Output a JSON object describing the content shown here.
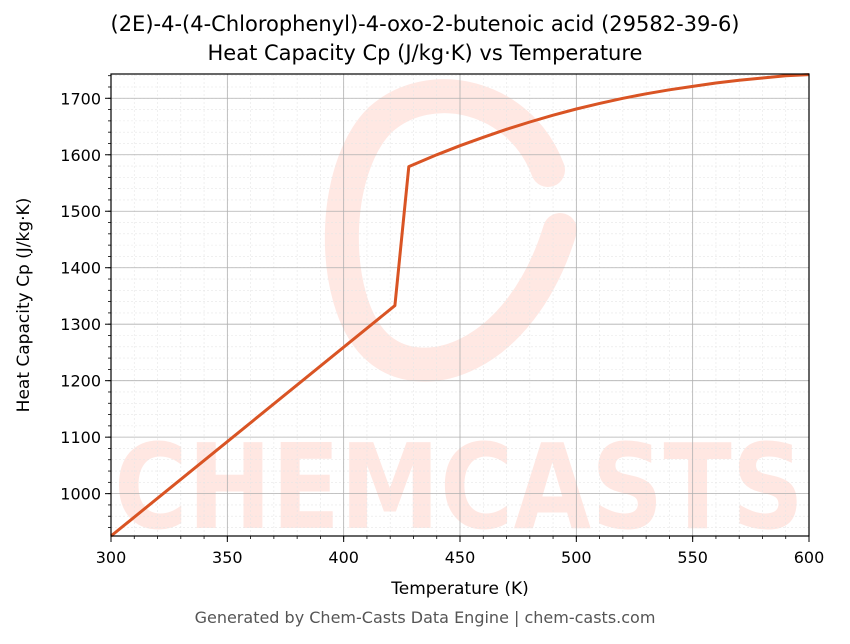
{
  "chart_data": {
    "type": "line",
    "title": "(2E)-4-(4-Chlorophenyl)-4-oxo-2-butenoic acid (29582-39-6)",
    "subtitle": "Heat Capacity Cp (J/kg·K) vs Temperature",
    "xlabel": "Temperature (K)",
    "ylabel": "Heat Capacity Cp (J/kg·K)",
    "xlim": [
      300,
      600
    ],
    "ylim": [
      925,
      1743
    ],
    "xticks": [
      300,
      350,
      400,
      450,
      500,
      550,
      600
    ],
    "yticks": [
      1000,
      1100,
      1200,
      1300,
      1400,
      1500,
      1600,
      1700
    ],
    "grid": true,
    "color": "#d95424",
    "series": [
      {
        "x": [
          300,
          422,
          428,
          440,
          450,
          460,
          470,
          480,
          490,
          500,
          510,
          520,
          530,
          540,
          550,
          560,
          570,
          580,
          590,
          600
        ],
        "y": [
          925,
          1333,
          1579,
          1600,
          1616,
          1631,
          1645,
          1658,
          1670,
          1681,
          1691,
          1700,
          1708,
          1715,
          1721,
          1727,
          1732,
          1736,
          1740,
          1742
        ]
      }
    ]
  },
  "watermark": "CHEMCASTS",
  "footer": "Generated by Chem-Casts Data Engine | chem-casts.com"
}
